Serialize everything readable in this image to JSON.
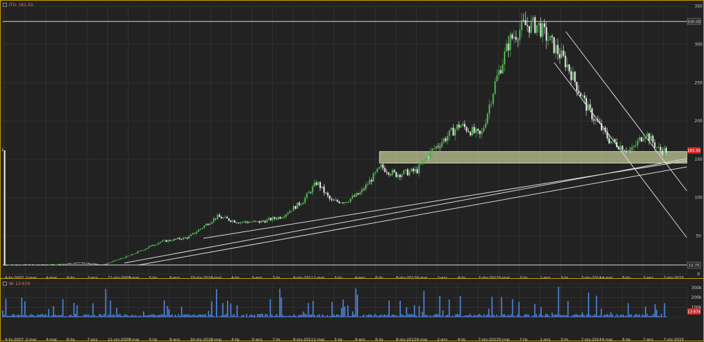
{
  "window": {
    "price_panel_label": "ITG: 161.50",
    "volume_panel_label": "W: 13 674"
  },
  "chart_data": [
    {
      "type": "candlestick",
      "title": "ITG: 161.50",
      "last_value_label": "161.50",
      "yticks": [
        0,
        50,
        100,
        150,
        200,
        250,
        300,
        350
      ],
      "ylim": [
        0,
        350
      ],
      "hlines": [
        {
          "value": 330,
          "label": "330.00"
        },
        {
          "value": 11.75,
          "label": "11.75"
        }
      ],
      "support_zone": {
        "from": 145,
        "to": 160
      },
      "xtick_labels": [
        "4-lis-2007",
        "2-mar",
        "4-maj",
        "6-lip",
        "7-wrz",
        "11-sty-2009",
        "3-maj",
        "5-lip",
        "6-wrz",
        "10-sty-2010",
        "2-maj",
        "4-lip",
        "5-wrz",
        "7-lis",
        "9-sty-2011",
        "1-maj",
        "3-lip",
        "4-wrz",
        "6-lis",
        "8-sty-2012",
        "6-maj",
        "2-wrz",
        "4-lis",
        "7-sty-2013",
        "5-maj",
        "7-lip",
        "1-wrz",
        "3-lis",
        "7-sty-2014",
        "4-maj",
        "6-lip",
        "7-wrz",
        "7-sty-2015"
      ],
      "price_path": [
        {
          "date": "2007-11",
          "value": 12
        },
        {
          "date": "2008-06",
          "value": 12
        },
        {
          "date": "2008-10",
          "value": 15
        },
        {
          "date": "2009-01",
          "value": 12
        },
        {
          "date": "2009-05",
          "value": 25
        },
        {
          "date": "2009-09",
          "value": 42
        },
        {
          "date": "2010-01",
          "value": 48
        },
        {
          "date": "2010-05",
          "value": 75
        },
        {
          "date": "2010-08",
          "value": 68
        },
        {
          "date": "2010-11",
          "value": 68
        },
        {
          "date": "2011-02",
          "value": 75
        },
        {
          "date": "2011-05",
          "value": 95
        },
        {
          "date": "2011-07",
          "value": 120
        },
        {
          "date": "2011-09",
          "value": 95
        },
        {
          "date": "2011-11",
          "value": 95
        },
        {
          "date": "2012-01",
          "value": 105
        },
        {
          "date": "2012-04",
          "value": 140
        },
        {
          "date": "2012-06",
          "value": 130
        },
        {
          "date": "2012-09",
          "value": 135
        },
        {
          "date": "2012-11",
          "value": 160
        },
        {
          "date": "2013-03",
          "value": 195
        },
        {
          "date": "2013-06",
          "value": 180
        },
        {
          "date": "2013-08",
          "value": 250
        },
        {
          "date": "2013-10",
          "value": 305
        },
        {
          "date": "2013-12",
          "value": 325
        },
        {
          "date": "2014-02",
          "value": 325
        },
        {
          "date": "2014-04",
          "value": 300
        },
        {
          "date": "2014-06",
          "value": 275
        },
        {
          "date": "2014-09",
          "value": 215
        },
        {
          "date": "2014-12",
          "value": 175
        },
        {
          "date": "2015-03",
          "value": 160
        },
        {
          "date": "2015-05",
          "value": 185
        },
        {
          "date": "2015-07",
          "value": 161.5
        }
      ]
    },
    {
      "type": "bar",
      "title": "W: 13 674",
      "last_value_label": "13 674",
      "ytick_labels": [
        "100k",
        "200k",
        "300k"
      ],
      "yticks": [
        100000,
        200000,
        300000
      ],
      "ylim": [
        0,
        340000
      ]
    }
  ],
  "colors": {
    "background": "#222222",
    "frame": "#c8a000",
    "grid": "#3a3a3a",
    "candle_up": "#4caf50",
    "candle_down": "#e0e0e0",
    "volume_bar": "#4a7fd4",
    "trendline": "#dcdcdc",
    "support_zone": "#e8f0b0",
    "last_price_badge": "#d32f2f"
  }
}
